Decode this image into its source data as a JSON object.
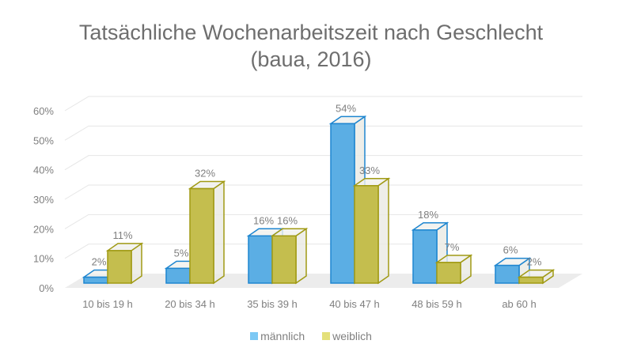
{
  "chart_data": {
    "type": "bar",
    "variant": "3d-clustered-column",
    "title": "Tatsächliche Wochenarbeitszeit nach Geschlecht",
    "subtitle": "(baua, 2016)",
    "xlabel": "",
    "ylabel": "",
    "categories": [
      "10 bis 19 h",
      "20 bis 34 h",
      "35 bis 39 h",
      "40 bis 47 h",
      "48 bis 59 h",
      "ab 60 h"
    ],
    "series": [
      {
        "name": "männlich",
        "values": [
          2,
          5,
          16,
          54,
          18,
          6
        ],
        "color": "#5BAEE4",
        "edge": "#1E86D0"
      },
      {
        "name": "weiblich",
        "values": [
          11,
          32,
          16,
          33,
          7,
          2
        ],
        "color": "#C4BE4E",
        "edge": "#A09A14"
      }
    ],
    "data_labels": [
      [
        "2%",
        "5%",
        "16%",
        "54%",
        "18%",
        "6%"
      ],
      [
        "11%",
        "32%",
        "16%",
        "33%",
        "7%",
        "2%"
      ]
    ],
    "ylim": [
      0,
      60
    ],
    "yticks": [
      0,
      10,
      20,
      30,
      40,
      50,
      60
    ],
    "ytick_labels": [
      "0%",
      "10%",
      "20%",
      "30%",
      "40%",
      "50%",
      "60%"
    ],
    "grid": true,
    "legend": {
      "position": "bottom",
      "entries": [
        "männlich",
        "weiblich"
      ]
    }
  }
}
